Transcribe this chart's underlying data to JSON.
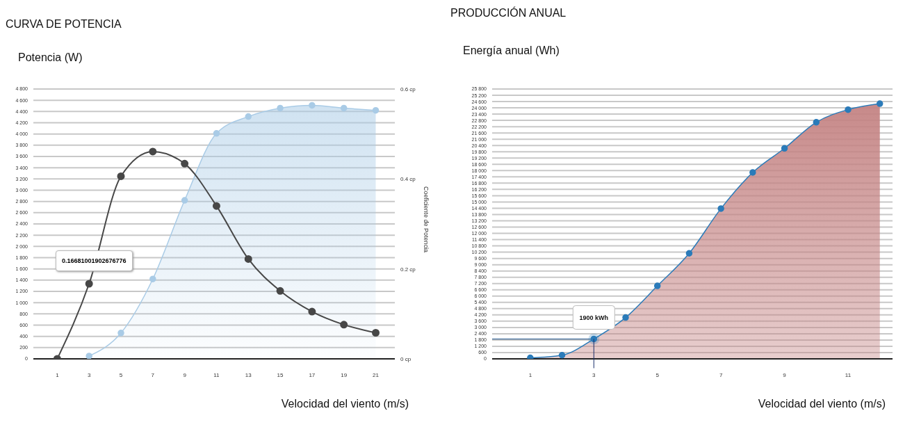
{
  "chart_data": [
    {
      "type": "area",
      "title": "CURVA DE POTENCIA",
      "ylabel": "Potencia (W)",
      "xlabel": "Velocidad del viento (m/s)",
      "y2label": "Coeficiente de Potencia",
      "series": [
        {
          "color": "#a9cbe6",
          "x": [
            3,
            5,
            7,
            9,
            11,
            13,
            15,
            17,
            19,
            21
          ],
          "values": [
            50,
            460,
            1420,
            2820,
            4010,
            4310,
            4460,
            4510,
            4460,
            4420
          ]
        },
        {
          "type": "line",
          "axis": "y2",
          "color": "#474747",
          "x": [
            1,
            3,
            5,
            7,
            9,
            11,
            13,
            15,
            17,
            19,
            21
          ],
          "values": [
            0,
            0.167,
            0.406,
            0.461,
            0.434,
            0.34,
            0.222,
            0.151,
            0.105,
            0.076,
            0.058
          ]
        }
      ],
      "xlim": [
        -0.5,
        22.2
      ],
      "xticks": [
        1,
        3,
        5,
        7,
        9,
        11,
        13,
        15,
        17,
        19,
        21
      ],
      "ylim": [
        0,
        4800
      ],
      "yticks": [
        0,
        200,
        400,
        600,
        800,
        {
          "value": 1000,
          "label": "1 000"
        },
        {
          "value": 1200,
          "label": "1 200"
        },
        {
          "value": 1400,
          "label": "1 400"
        },
        {
          "value": 1600,
          "label": "1 600"
        },
        {
          "value": 1800,
          "label": "1 800"
        },
        {
          "value": 2000,
          "label": "2 000"
        },
        {
          "value": 2200,
          "label": "2 200"
        },
        {
          "value": 2400,
          "label": "2 400"
        },
        {
          "value": 2600,
          "label": "2 600"
        },
        {
          "value": 2800,
          "label": "2 800"
        },
        {
          "value": 3000,
          "label": "3 000"
        },
        {
          "value": 3200,
          "label": "3 200"
        },
        {
          "value": 3400,
          "label": "3 400"
        },
        {
          "value": 3600,
          "label": "3 600"
        },
        {
          "value": 3800,
          "label": "3 800"
        },
        {
          "value": 4000,
          "label": "4 000"
        },
        {
          "value": 4200,
          "label": "4 200"
        },
        {
          "value": 4400,
          "label": "4 400"
        },
        {
          "value": 4600,
          "label": "4 600"
        },
        {
          "value": 4800,
          "label": "4 800"
        }
      ],
      "y2lim": [
        0,
        0.6
      ],
      "y2ticks": [
        {
          "value": 0,
          "label": "0 cp"
        },
        {
          "value": 0.2,
          "label": "0.2 cp"
        },
        {
          "value": 0.4,
          "label": "0.4 cp"
        },
        {
          "value": 0.6,
          "label": "0.6 cp"
        }
      ],
      "annotations": [
        "0.16681001902676776"
      ],
      "grid": "y",
      "marker": "circle",
      "legend": false
    },
    {
      "type": "area",
      "title": "PRODUCCIÓN ANUAL",
      "ylabel": "Energía anual (Wh)",
      "xlabel": "Velocidad del viento (m/s)",
      "series": [
        {
          "color": "#2b7bb9",
          "x": [
            1,
            2,
            3,
            4,
            5,
            6,
            7,
            8,
            9,
            10,
            11,
            12
          ],
          "values": [
            100,
            350,
            1900,
            3950,
            6980,
            10090,
            14370,
            17820,
            20130,
            22620,
            23830,
            24400
          ]
        }
      ],
      "xlim": [
        -0.2,
        12.4
      ],
      "xticks": [
        1,
        3,
        5,
        7,
        9,
        11
      ],
      "ylim": [
        0,
        25800
      ],
      "yticks": [
        0,
        600,
        {
          "value": 1200,
          "label": "1 200"
        },
        {
          "value": 1800,
          "label": "1 800"
        },
        {
          "value": 2400,
          "label": "2 400"
        },
        {
          "value": 3000,
          "label": "3 000"
        },
        {
          "value": 3600,
          "label": "3 600"
        },
        {
          "value": 4200,
          "label": "4 200"
        },
        {
          "value": 4800,
          "label": "4 800"
        },
        {
          "value": 5400,
          "label": "5 400"
        },
        {
          "value": 6000,
          "label": "6 000"
        },
        {
          "value": 6600,
          "label": "6 600"
        },
        {
          "value": 7200,
          "label": "7 200"
        },
        {
          "value": 7800,
          "label": "7 800"
        },
        {
          "value": 8400,
          "label": "8 400"
        },
        {
          "value": 9000,
          "label": "9 000"
        },
        {
          "value": 9600,
          "label": "9 600"
        },
        {
          "value": 10200,
          "label": "10 200"
        },
        {
          "value": 10800,
          "label": "10 800"
        },
        {
          "value": 11400,
          "label": "11 400"
        },
        {
          "value": 12000,
          "label": "12 000"
        },
        {
          "value": 12600,
          "label": "12 600"
        },
        {
          "value": 13200,
          "label": "13 200"
        },
        {
          "value": 13800,
          "label": "13 800"
        },
        {
          "value": 14400,
          "label": "14 400"
        },
        {
          "value": 15000,
          "label": "15 000"
        },
        {
          "value": 15600,
          "label": "15 600"
        },
        {
          "value": 16200,
          "label": "16 200"
        },
        {
          "value": 16800,
          "label": "16 800"
        },
        {
          "value": 17400,
          "label": "17 400"
        },
        {
          "value": 18000,
          "label": "18 000"
        },
        {
          "value": 18600,
          "label": "18 600"
        },
        {
          "value": 19200,
          "label": "19 200"
        },
        {
          "value": 19800,
          "label": "19 800"
        },
        {
          "value": 20400,
          "label": "20 400"
        },
        {
          "value": 21000,
          "label": "21 000"
        },
        {
          "value": 21600,
          "label": "21 600"
        },
        {
          "value": 22200,
          "label": "22 200"
        },
        {
          "value": 22800,
          "label": "22 800"
        },
        {
          "value": 23400,
          "label": "23 400"
        },
        {
          "value": 24000,
          "label": "24 000"
        },
        {
          "value": 24600,
          "label": "24 600"
        },
        {
          "value": 25200,
          "label": "25 200"
        },
        {
          "value": 25800,
          "label": "25 800"
        }
      ],
      "annotations": [
        {
          "text": "1900 kWh",
          "x": 3,
          "y": 1900
        }
      ],
      "ref_lines": [
        {
          "axis": "y",
          "value": 1900,
          "color": "#1b4f8a"
        }
      ],
      "grid": "y",
      "marker": "circle",
      "legend": false
    }
  ]
}
